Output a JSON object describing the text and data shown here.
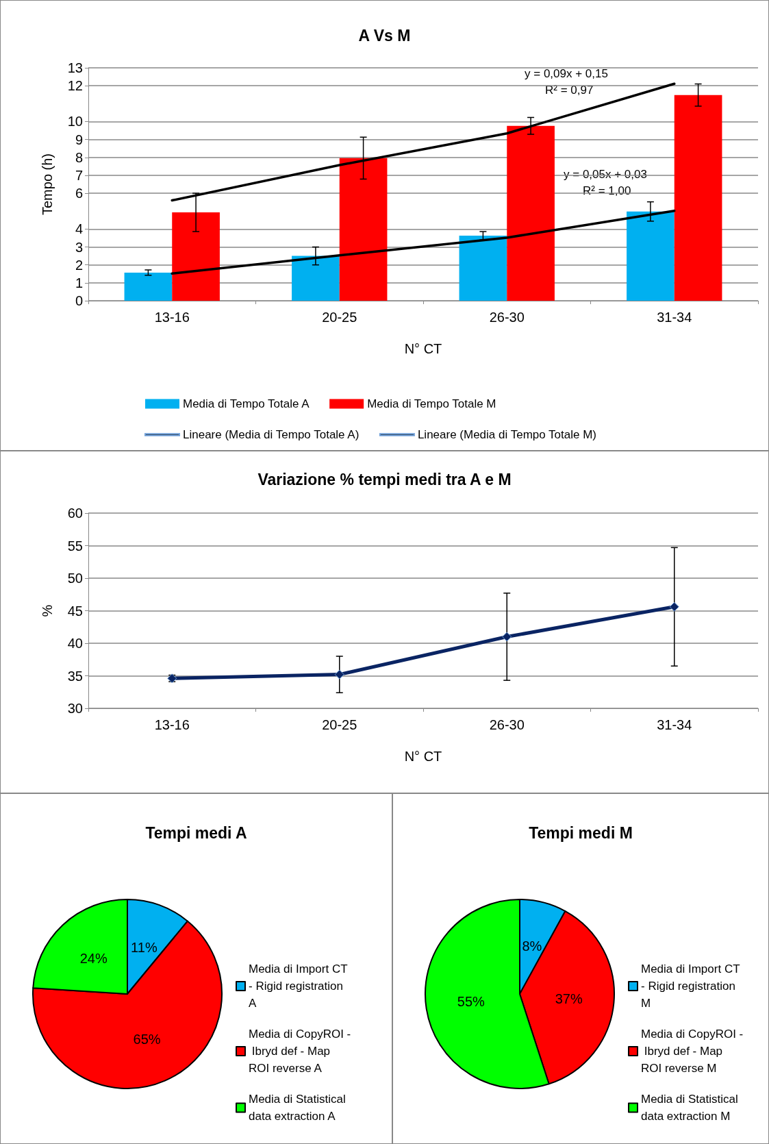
{
  "chart_data": [
    {
      "type": "bar",
      "title": "A Vs M",
      "xlabel": "N° CT",
      "ylabel": "Tempo (h)",
      "categories": [
        "13-16",
        "20-25",
        "26-30",
        "31-34"
      ],
      "series": [
        {
          "name": "Media di Tempo Totale A",
          "color": "#00b0f0",
          "values": [
            1.57,
            2.5,
            3.63,
            4.98
          ],
          "errors": [
            0.15,
            0.5,
            0.23,
            0.54
          ]
        },
        {
          "name": "Media di Tempo Totale M",
          "color": "#ff0000",
          "values": [
            4.93,
            7.96,
            9.76,
            11.48
          ],
          "errors": [
            1.07,
            1.17,
            0.47,
            0.62
          ]
        },
        {
          "name": "Lineare (Media di Tempo Totale A)",
          "type": "line",
          "color": "#000000",
          "values": [
            1.52,
            2.53,
            3.52,
            5.02
          ]
        },
        {
          "name": "Lineare (Media di Tempo Totale M)",
          "type": "line",
          "color": "#000000",
          "values": [
            5.6,
            7.57,
            9.34,
            12.11
          ]
        }
      ],
      "ylim": [
        0,
        13
      ],
      "yticks": [
        0,
        1,
        2,
        3,
        4,
        6,
        7,
        8,
        9,
        10,
        12,
        13
      ],
      "grid": "y",
      "legend": "bottom",
      "annotations": [
        "y = 0,09x + 0,15",
        "R² = 0,97",
        "y = 0,05x + 0,03",
        "R² = 1,00"
      ]
    },
    {
      "type": "line",
      "title": "Variazione % tempi medi tra A e M",
      "xlabel": "N° CT",
      "ylabel": "%",
      "categories": [
        "13-16",
        "20-25",
        "26-30",
        "31-34"
      ],
      "series": [
        {
          "color": "#0a2463",
          "values": [
            34.6,
            35.2,
            41.0,
            45.6
          ],
          "errors": [
            0.5,
            2.8,
            6.7,
            9.1
          ]
        }
      ],
      "ylim": [
        30,
        60
      ],
      "yticks": [
        30,
        35,
        40,
        45,
        50,
        55,
        60
      ],
      "grid": "y",
      "marker": "diamond",
      "line_style": "solid"
    },
    {
      "type": "pie",
      "title": "Tempi medi A",
      "categories": [
        "Media di Import CT - Rigid registration A",
        "Media di CopyROI - Ibryd def - Map ROI reverse A",
        "Media di Statistical data extraction A"
      ],
      "values": [
        11,
        65,
        24
      ],
      "colors": [
        "#00b0f0",
        "#ff0000",
        "#00ff00"
      ],
      "value_labels": [
        "11%",
        "65%",
        "24%"
      ],
      "legend": "right"
    },
    {
      "type": "pie",
      "title": "Tempi medi M",
      "categories": [
        "Media di Import CT - Rigid registration M",
        "Media di CopyROI - Ibryd def - Map ROI reverse M",
        "Media di Statistical data extraction M"
      ],
      "values": [
        8,
        37,
        55
      ],
      "colors": [
        "#00b0f0",
        "#ff0000",
        "#00ff00"
      ],
      "value_labels": [
        "8%",
        "37%",
        "55%"
      ],
      "legend": "right"
    }
  ]
}
